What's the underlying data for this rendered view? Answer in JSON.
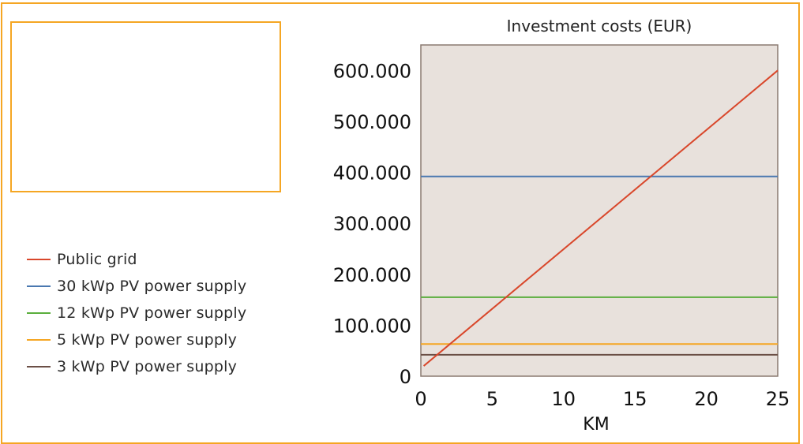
{
  "chart_data": {
    "type": "line",
    "title": "Investment costs (EUR)",
    "xlabel": "KM",
    "ylabel": "",
    "xlim": [
      0,
      25
    ],
    "ylim": [
      0,
      650000
    ],
    "x_ticks": [
      {
        "value": 0,
        "label": "0"
      },
      {
        "value": 5,
        "label": "5"
      },
      {
        "value": 10,
        "label": "10"
      },
      {
        "value": 15,
        "label": "15"
      },
      {
        "value": 20,
        "label": "20"
      },
      {
        "value": 25,
        "label": "25"
      }
    ],
    "y_ticks": [
      {
        "value": 0,
        "label": "0"
      },
      {
        "value": 100000,
        "label": "100.000"
      },
      {
        "value": 200000,
        "label": "200.000"
      },
      {
        "value": 300000,
        "label": "300.000"
      },
      {
        "value": 400000,
        "label": "400.000"
      },
      {
        "value": 500000,
        "label": "500.000"
      },
      {
        "value": 600000,
        "label": "600.000"
      }
    ],
    "grid": false,
    "legend_position": "left",
    "plot_background": "#e8e1dc",
    "series": [
      {
        "name": "Public grid",
        "color": "#d9472b",
        "x": [
          0.2,
          25
        ],
        "y": [
          20000,
          600000
        ]
      },
      {
        "name": "30 kWp PV power supply",
        "color": "#4a78b0",
        "x": [
          0,
          25
        ],
        "y": [
          392000,
          392000
        ]
      },
      {
        "name": "12 kWp PV power supply",
        "color": "#5aae3c",
        "x": [
          0,
          25
        ],
        "y": [
          155000,
          155000
        ]
      },
      {
        "name": "5 kWp PV power supply",
        "color": "#f5a623",
        "x": [
          0,
          25
        ],
        "y": [
          63000,
          63000
        ]
      },
      {
        "name": "3 kWp PV power supply",
        "color": "#6b4f46",
        "x": [
          0,
          25
        ],
        "y": [
          42000,
          42000
        ]
      }
    ]
  }
}
